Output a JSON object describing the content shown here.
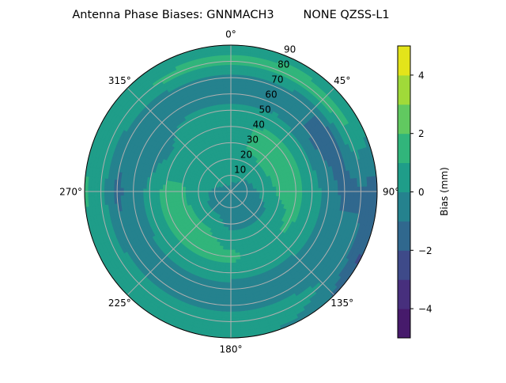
{
  "chart_data": {
    "type": "heatmap",
    "subtype": "polar-filled-contour",
    "title": "Antenna Phase Biases: GNNMACH3        NONE QZSS-L1",
    "angle_direction": "clockwise",
    "angle_zero": "top",
    "angle_tick_labels": [
      "0°",
      "45°",
      "90°",
      "135°",
      "180°",
      "225°",
      "270°",
      "315°"
    ],
    "angle_ticks": [
      0,
      45,
      90,
      135,
      180,
      225,
      270,
      315
    ],
    "radial_ticks": [
      10,
      20,
      30,
      40,
      50,
      60,
      70,
      80,
      90
    ],
    "radial_tick_labels": [
      "10",
      "20",
      "30",
      "40",
      "50",
      "60",
      "70",
      "80",
      "90"
    ],
    "radial_range": [
      0,
      90
    ],
    "grid": true,
    "colorbar": {
      "label": "Bias (mm)",
      "levels": [
        -5,
        -4,
        -3,
        -2,
        -1,
        0,
        1,
        2,
        3,
        4,
        5
      ],
      "colors": [
        "#461a6b",
        "#472f7d",
        "#3e4a89",
        "#30688e",
        "#25828e",
        "#1f9d89",
        "#31b57b",
        "#61c960",
        "#a0da39",
        "#e3e41a"
      ],
      "ticks": [
        -4,
        -2,
        0,
        2,
        4
      ],
      "tick_labels": [
        "−4",
        "−2",
        "0",
        "2",
        "4"
      ]
    },
    "azimuth": [
      0,
      30,
      60,
      90,
      120,
      150,
      180,
      210,
      240,
      270,
      300,
      330
    ],
    "zenith": [
      0,
      10,
      20,
      30,
      40,
      50,
      60,
      70,
      80,
      90
    ],
    "values": [
      [
        -0.3,
        0.3,
        0.5,
        0.5,
        0.5,
        0.3,
        -0.5,
        -0.3,
        1.3,
        0.5
      ],
      [
        -0.3,
        0.2,
        0.6,
        1.3,
        1.3,
        0.5,
        -0.5,
        -0.5,
        1.3,
        0.8
      ],
      [
        -0.3,
        -0.2,
        0.8,
        1.4,
        1.3,
        0.3,
        -1.3,
        -1.3,
        1.2,
        0.5
      ],
      [
        -0.3,
        -0.5,
        0.3,
        1.2,
        1.3,
        0.5,
        -0.5,
        -1.3,
        -1.2,
        -1.5
      ],
      [
        -0.3,
        -0.6,
        -0.3,
        0.5,
        1.2,
        0.5,
        -0.3,
        -0.5,
        -0.5,
        -2.3
      ],
      [
        -0.3,
        -0.5,
        -0.4,
        0.5,
        0.5,
        0.3,
        -0.5,
        -0.5,
        0.5,
        -0.3
      ],
      [
        -0.3,
        -0.3,
        -0.3,
        0.5,
        1.3,
        0.5,
        -0.5,
        -0.5,
        0.5,
        0.5
      ],
      [
        -0.3,
        -0.4,
        0.3,
        1.3,
        1.3,
        0.5,
        -0.5,
        -0.5,
        0.5,
        0.5
      ],
      [
        -0.3,
        -0.5,
        0.4,
        1.3,
        1.3,
        0.5,
        -0.5,
        -0.5,
        0.5,
        0.3
      ],
      [
        -0.3,
        -0.2,
        0.4,
        1.2,
        1.3,
        0.3,
        -0.5,
        -1.3,
        0.5,
        1.2
      ],
      [
        -0.3,
        0.2,
        0.5,
        0.5,
        0.3,
        -0.5,
        -0.6,
        -0.5,
        0.5,
        0.3
      ],
      [
        -0.3,
        0.3,
        0.5,
        0.5,
        0.5,
        0.3,
        -0.5,
        -0.5,
        1.2,
        0.5
      ]
    ]
  }
}
